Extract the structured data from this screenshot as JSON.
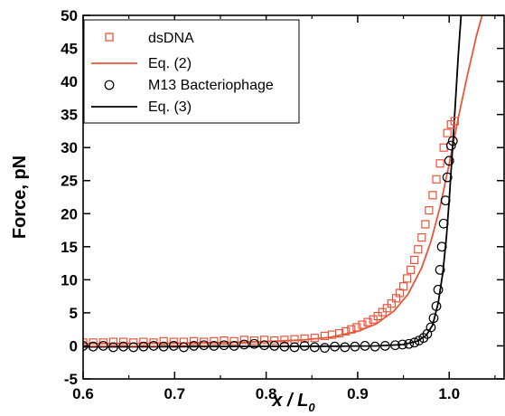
{
  "chart_data": {
    "type": "scatter",
    "xlabel": {
      "main": "x / L",
      "sub": "0"
    },
    "ylabel": "Force, pN",
    "xlim": [
      0.6,
      1.06
    ],
    "ylim": [
      -5,
      50
    ],
    "xticks": [
      "0.6",
      "0.7",
      "0.8",
      "0.9",
      "1.0"
    ],
    "yticks": [
      "-5",
      "0",
      "5",
      "10",
      "15",
      "20",
      "25",
      "30",
      "35",
      "40",
      "45",
      "50"
    ],
    "legend_position": "top-left",
    "series": [
      {
        "name": "dsDNA",
        "kind": "markers",
        "marker": "square",
        "color": "#e8553a",
        "x": [
          0.6,
          0.611,
          0.622,
          0.633,
          0.644,
          0.655,
          0.666,
          0.677,
          0.688,
          0.699,
          0.71,
          0.721,
          0.732,
          0.743,
          0.754,
          0.765,
          0.776,
          0.787,
          0.798,
          0.809,
          0.82,
          0.831,
          0.842,
          0.853,
          0.864,
          0.872,
          0.88,
          0.887,
          0.893,
          0.899,
          0.905,
          0.911,
          0.917,
          0.922,
          0.927,
          0.932,
          0.937,
          0.942,
          0.946,
          0.95,
          0.954,
          0.958,
          0.962,
          0.966,
          0.97,
          0.974,
          0.978,
          0.982,
          0.986,
          0.99,
          0.994,
          0.998,
          1.002,
          1.006
        ],
        "y": [
          0.5,
          0.5,
          0.5,
          0.6,
          0.6,
          0.5,
          0.6,
          0.5,
          0.7,
          0.6,
          0.6,
          0.7,
          0.6,
          0.7,
          0.8,
          0.7,
          0.9,
          0.8,
          0.9,
          0.8,
          0.9,
          1.0,
          1.1,
          1.2,
          1.5,
          1.7,
          1.9,
          2.2,
          2.5,
          2.8,
          3.2,
          3.6,
          4.0,
          4.5,
          5.1,
          5.7,
          6.4,
          7.2,
          8.0,
          9.0,
          10.2,
          11.5,
          13.0,
          14.6,
          16.4,
          18.4,
          20.5,
          22.8,
          25.2,
          27.6,
          30.0,
          32.2,
          33.5,
          34.0
        ]
      },
      {
        "name": "Eq. (2)",
        "kind": "line",
        "color": "#e8553a",
        "x": [
          0.6,
          0.65,
          0.7,
          0.75,
          0.8,
          0.84,
          0.87,
          0.9,
          0.92,
          0.94,
          0.955,
          0.97,
          0.98,
          0.99,
          1.0,
          1.01,
          1.02,
          1.03,
          1.036
        ],
        "y": [
          0.35,
          0.38,
          0.42,
          0.5,
          0.65,
          0.9,
          1.3,
          2.2,
          3.3,
          5.3,
          7.8,
          11.8,
          15.8,
          21.0,
          27.5,
          34.5,
          41.0,
          47.0,
          50.0
        ]
      },
      {
        "name": "M13 Bacteriophage",
        "kind": "markers",
        "marker": "circle",
        "color": "#000000",
        "x": [
          0.6,
          0.611,
          0.622,
          0.633,
          0.644,
          0.655,
          0.666,
          0.677,
          0.688,
          0.699,
          0.71,
          0.721,
          0.732,
          0.743,
          0.754,
          0.765,
          0.776,
          0.787,
          0.798,
          0.809,
          0.82,
          0.831,
          0.842,
          0.853,
          0.864,
          0.875,
          0.886,
          0.897,
          0.908,
          0.919,
          0.93,
          0.941,
          0.949,
          0.956,
          0.962,
          0.967,
          0.972,
          0.976,
          0.98,
          0.983,
          0.986,
          0.988,
          0.99,
          0.992,
          0.994,
          0.996,
          0.998,
          1.0,
          1.002,
          1.004
        ],
        "y": [
          0.0,
          -0.1,
          0.0,
          -0.2,
          -0.1,
          -0.2,
          -0.1,
          0.0,
          -0.1,
          0.0,
          -0.2,
          0.0,
          0.1,
          0.0,
          0.1,
          0.0,
          0.2,
          0.3,
          0.1,
          0.0,
          -0.1,
          -0.2,
          0.0,
          -0.2,
          -0.3,
          -0.1,
          -0.2,
          -0.1,
          0.0,
          -0.1,
          0.0,
          0.1,
          0.2,
          0.3,
          0.5,
          0.8,
          1.2,
          1.8,
          2.8,
          4.2,
          6.0,
          8.5,
          11.5,
          15.0,
          18.5,
          22.0,
          25.5,
          28.0,
          30.3,
          31.0
        ]
      },
      {
        "name": "Eq. (3)",
        "kind": "line",
        "color": "#000000",
        "x": [
          0.6,
          0.7,
          0.8,
          0.88,
          0.92,
          0.95,
          0.965,
          0.975,
          0.982,
          0.988,
          0.993,
          0.997,
          1.0,
          1.003,
          1.006,
          1.01,
          1.013
        ],
        "y": [
          -0.15,
          -0.12,
          -0.08,
          -0.05,
          0.0,
          0.2,
          0.7,
          1.6,
          3.2,
          6.5,
          11.0,
          16.5,
          22.0,
          28.5,
          35.0,
          44.0,
          50.0
        ]
      }
    ]
  }
}
